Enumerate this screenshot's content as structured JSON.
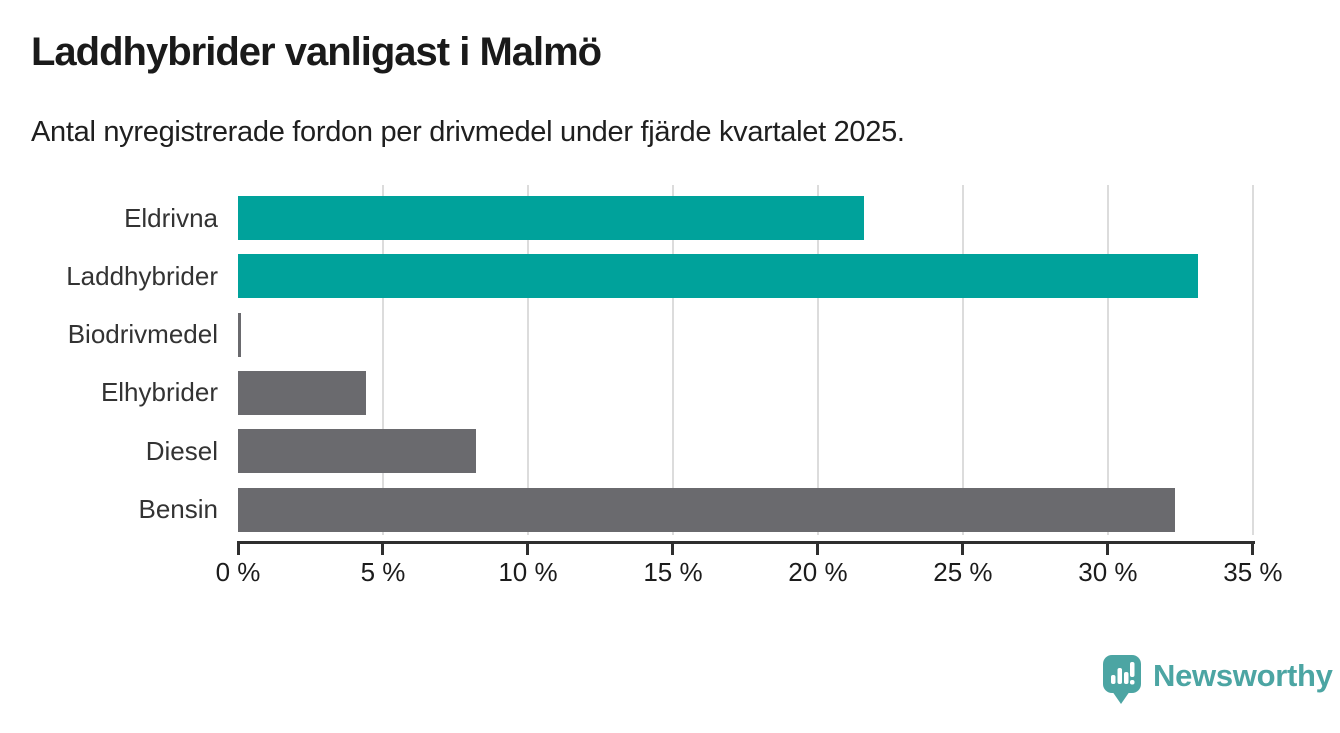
{
  "header": {
    "title": "Laddhybrider vanligast i Malmö",
    "subtitle": "Antal nyregistrerade fordon per drivmedel under fjärde kvartalet 2025."
  },
  "chart_data": {
    "type": "bar",
    "orientation": "horizontal",
    "title": "Laddhybrider vanligast i Malmö",
    "subtitle": "Antal nyregistrerade fordon per drivmedel under fjärde kvartalet 2025.",
    "categories": [
      "Eldrivna",
      "Laddhybrider",
      "Biodrivmedel",
      "Elhybrider",
      "Diesel",
      "Bensin"
    ],
    "values": [
      21.6,
      33.1,
      0.1,
      4.4,
      8.2,
      32.3
    ],
    "unit": "%",
    "xlabel": "",
    "ylabel": "",
    "xlim": [
      0,
      35
    ],
    "x_ticks": [
      0,
      5,
      10,
      15,
      20,
      25,
      30,
      35
    ],
    "x_tick_labels": [
      "0 %",
      "5 %",
      "10 %",
      "15 %",
      "20 %",
      "25 %",
      "30 %",
      "35 %"
    ],
    "grid": true,
    "legend": "none",
    "bar_colors": [
      "#00a29b",
      "#00a29b",
      "#6a6a6e",
      "#6a6a6e",
      "#6a6a6e",
      "#6a6a6e"
    ],
    "highlight_color": "#00a29b",
    "base_color": "#6a6a6e",
    "gridline_color": "#dcdcdc",
    "axis_color": "#2f2f2f"
  },
  "footer": {
    "brand": "Newsworthy",
    "brand_color": "#4ca5a3",
    "logo_icon": "speech-bubble-bar-chart-icon"
  }
}
